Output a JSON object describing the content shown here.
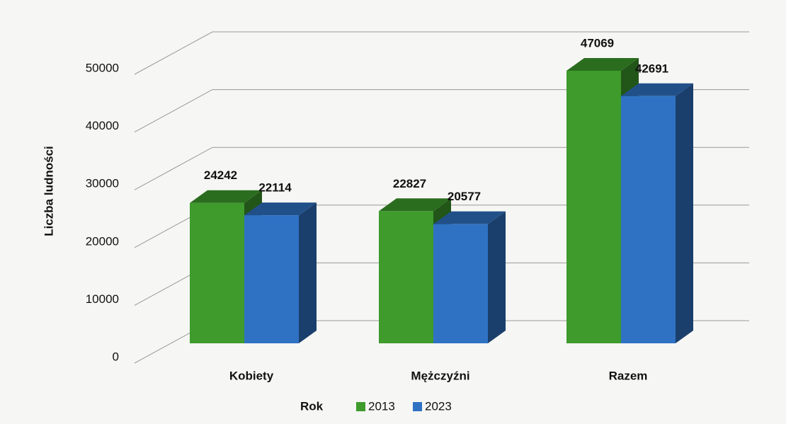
{
  "chart_data": {
    "type": "bar3d",
    "y_axis_label": "Liczba ludności",
    "legend_title": "Rok",
    "categories": [
      "Kobiety",
      "Mężczyźni",
      "Razem"
    ],
    "series": [
      {
        "name": "2013",
        "color": "#3e9b2c",
        "values": [
          24242,
          22827,
          47069
        ]
      },
      {
        "name": "2023",
        "color": "#2f72c4",
        "values": [
          22114,
          20577,
          42691
        ]
      }
    ],
    "ylim": [
      0,
      50000
    ],
    "yticks": [
      0,
      10000,
      20000,
      30000,
      40000,
      50000
    ],
    "grid": true,
    "legend": "bottom"
  }
}
